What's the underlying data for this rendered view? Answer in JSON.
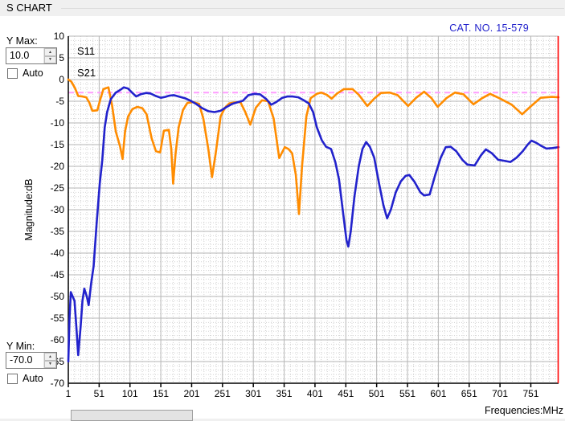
{
  "window": {
    "title": "S CHART"
  },
  "annotation": {
    "cat_no": "CAT. NO. 15-579"
  },
  "controls": {
    "y_max_label": "Y Max:",
    "y_max_value": "10.0",
    "y_min_label": "Y Min:",
    "y_min_value": "-70.0",
    "auto_label": "Auto",
    "auto_max_checked": false,
    "auto_min_checked": false
  },
  "icons": {
    "spin_up": "▲",
    "spin_down": "▼"
  },
  "colors": {
    "s11": "#ff8c00",
    "s21": "#2222cc",
    "reference_line": "#ff9eff",
    "cursor_line": "#ff0000",
    "cat_no_text": "#2222cc",
    "grid_major": "#b5b5b5",
    "grid_minor": "#d2d2d2",
    "axis": "#000000"
  },
  "chart_data": {
    "type": "line",
    "title": "",
    "xlabel": "Frequencies:MHz",
    "ylabel": "Magnitude:dB",
    "xlim": [
      1,
      796
    ],
    "ylim": [
      -70,
      10
    ],
    "x_ticks": [
      1,
      51,
      101,
      151,
      201,
      251,
      301,
      351,
      401,
      451,
      501,
      551,
      601,
      651,
      701,
      751
    ],
    "y_ticks": [
      10,
      5,
      0,
      -5,
      -10,
      -15,
      -20,
      -25,
      -30,
      -35,
      -40,
      -45,
      -50,
      -55,
      -60,
      -65,
      -70
    ],
    "x_minor_step": 10,
    "y_minor_step": 1,
    "grid": true,
    "legend_position": "top-left",
    "reference_line": {
      "y": -3,
      "style": "dashed"
    },
    "cursor_line": {
      "x": 796
    },
    "series": [
      {
        "name": "S11",
        "points": [
          [
            1,
            0
          ],
          [
            6,
            -0.5
          ],
          [
            12,
            -2
          ],
          [
            17,
            -3.8
          ],
          [
            24,
            -3.9
          ],
          [
            30,
            -4.1
          ],
          [
            35,
            -5.3
          ],
          [
            40,
            -7.2
          ],
          [
            48,
            -7.1
          ],
          [
            53,
            -4.5
          ],
          [
            58,
            -2.2
          ],
          [
            66,
            -1.8
          ],
          [
            72,
            -6
          ],
          [
            78,
            -12
          ],
          [
            85,
            -15.5
          ],
          [
            89,
            -18.3
          ],
          [
            93,
            -12
          ],
          [
            98,
            -8.5
          ],
          [
            105,
            -6.8
          ],
          [
            113,
            -6.3
          ],
          [
            121,
            -6.6
          ],
          [
            128,
            -8
          ],
          [
            136,
            -13.5
          ],
          [
            143,
            -16.5
          ],
          [
            150,
            -16.8
          ],
          [
            156,
            -11.8
          ],
          [
            164,
            -11.6
          ],
          [
            168,
            -16
          ],
          [
            171,
            -24
          ],
          [
            175,
            -17
          ],
          [
            180,
            -11
          ],
          [
            187,
            -7
          ],
          [
            194,
            -5.4
          ],
          [
            203,
            -5.2
          ],
          [
            213,
            -5.6
          ],
          [
            220,
            -9
          ],
          [
            228,
            -16
          ],
          [
            234,
            -22.5
          ],
          [
            240,
            -17
          ],
          [
            248,
            -8.5
          ],
          [
            255,
            -6.5
          ],
          [
            262,
            -5.5
          ],
          [
            270,
            -5.3
          ],
          [
            280,
            -5.2
          ],
          [
            288,
            -7.5
          ],
          [
            296,
            -10.4
          ],
          [
            305,
            -6.5
          ],
          [
            315,
            -4.8
          ],
          [
            325,
            -5.0
          ],
          [
            334,
            -9
          ],
          [
            343,
            -18.1
          ],
          [
            352,
            -15.6
          ],
          [
            358,
            -16
          ],
          [
            364,
            -17
          ],
          [
            370,
            -22
          ],
          [
            375,
            -31
          ],
          [
            380,
            -20
          ],
          [
            387,
            -8.5
          ],
          [
            394,
            -4.3
          ],
          [
            404,
            -3.3
          ],
          [
            411,
            -3.0
          ],
          [
            420,
            -3.5
          ],
          [
            428,
            -4.4
          ],
          [
            437,
            -3.2
          ],
          [
            448,
            -2.2
          ],
          [
            462,
            -2.2
          ],
          [
            472,
            -3.5
          ],
          [
            486,
            -6.1
          ],
          [
            497,
            -4.4
          ],
          [
            508,
            -3.1
          ],
          [
            522,
            -3.0
          ],
          [
            535,
            -3.6
          ],
          [
            552,
            -6.1
          ],
          [
            565,
            -4.2
          ],
          [
            578,
            -2.8
          ],
          [
            590,
            -4.3
          ],
          [
            600,
            -6.3
          ],
          [
            614,
            -4.3
          ],
          [
            628,
            -3.0
          ],
          [
            642,
            -3.4
          ],
          [
            658,
            -5.7
          ],
          [
            672,
            -4.3
          ],
          [
            685,
            -3.3
          ],
          [
            700,
            -4.3
          ],
          [
            720,
            -5.8
          ],
          [
            737,
            -8.0
          ],
          [
            750,
            -6.3
          ],
          [
            767,
            -4.2
          ],
          [
            785,
            -4.0
          ],
          [
            796,
            -4.1
          ]
        ]
      },
      {
        "name": "S21",
        "points": [
          [
            1,
            -65
          ],
          [
            3,
            -55
          ],
          [
            5,
            -49
          ],
          [
            8,
            -50
          ],
          [
            11,
            -51
          ],
          [
            14,
            -57
          ],
          [
            17,
            -63.5
          ],
          [
            21,
            -57
          ],
          [
            24,
            -51
          ],
          [
            27,
            -48.2
          ],
          [
            31,
            -50
          ],
          [
            34,
            -52
          ],
          [
            38,
            -47
          ],
          [
            42,
            -43
          ],
          [
            47,
            -33
          ],
          [
            52,
            -24
          ],
          [
            56,
            -18.7
          ],
          [
            60,
            -11
          ],
          [
            64,
            -7.5
          ],
          [
            70,
            -4.5
          ],
          [
            78,
            -3
          ],
          [
            85,
            -2.4
          ],
          [
            91,
            -1.8
          ],
          [
            98,
            -2.1
          ],
          [
            105,
            -3.1
          ],
          [
            111,
            -3.9
          ],
          [
            118,
            -3.4
          ],
          [
            127,
            -3.1
          ],
          [
            134,
            -3.2
          ],
          [
            143,
            -3.8
          ],
          [
            151,
            -4.2
          ],
          [
            158,
            -4.0
          ],
          [
            165,
            -3.7
          ],
          [
            172,
            -3.6
          ],
          [
            180,
            -3.9
          ],
          [
            190,
            -4.3
          ],
          [
            198,
            -4.8
          ],
          [
            208,
            -5.6
          ],
          [
            218,
            -6.6
          ],
          [
            228,
            -7.3
          ],
          [
            238,
            -7.5
          ],
          [
            248,
            -7.2
          ],
          [
            258,
            -6.3
          ],
          [
            267,
            -5.6
          ],
          [
            276,
            -5.2
          ],
          [
            284,
            -4.9
          ],
          [
            293,
            -3.6
          ],
          [
            303,
            -3.3
          ],
          [
            312,
            -3.4
          ],
          [
            322,
            -4.5
          ],
          [
            330,
            -5.8
          ],
          [
            338,
            -5.2
          ],
          [
            348,
            -4.2
          ],
          [
            356,
            -3.9
          ],
          [
            365,
            -3.9
          ],
          [
            374,
            -4.1
          ],
          [
            383,
            -4.8
          ],
          [
            391,
            -5.5
          ],
          [
            398,
            -7.5
          ],
          [
            404,
            -11
          ],
          [
            412,
            -14
          ],
          [
            419,
            -15.5
          ],
          [
            427,
            -16
          ],
          [
            434,
            -19
          ],
          [
            440,
            -23
          ],
          [
            446,
            -30
          ],
          [
            452,
            -37
          ],
          [
            455,
            -38.5
          ],
          [
            459,
            -35
          ],
          [
            465,
            -27
          ],
          [
            472,
            -20
          ],
          [
            478,
            -16
          ],
          [
            484,
            -14.4
          ],
          [
            490,
            -15.5
          ],
          [
            497,
            -18
          ],
          [
            505,
            -24
          ],
          [
            512,
            -29
          ],
          [
            518,
            -32
          ],
          [
            524,
            -30
          ],
          [
            532,
            -26
          ],
          [
            540,
            -23.5
          ],
          [
            548,
            -22.2
          ],
          [
            554,
            -22
          ],
          [
            562,
            -23.5
          ],
          [
            572,
            -26
          ],
          [
            578,
            -26.7
          ],
          [
            587,
            -26.5
          ],
          [
            596,
            -22
          ],
          [
            605,
            -18
          ],
          [
            613,
            -15.6
          ],
          [
            621,
            -15.5
          ],
          [
            630,
            -16.5
          ],
          [
            640,
            -18.5
          ],
          [
            648,
            -19.6
          ],
          [
            660,
            -19.8
          ],
          [
            670,
            -17.5
          ],
          [
            678,
            -16.1
          ],
          [
            688,
            -17
          ],
          [
            698,
            -18.5
          ],
          [
            707,
            -18.7
          ],
          [
            718,
            -19
          ],
          [
            728,
            -18
          ],
          [
            738,
            -16.5
          ],
          [
            746,
            -15
          ],
          [
            752,
            -14.1
          ],
          [
            760,
            -14.6
          ],
          [
            768,
            -15.3
          ],
          [
            776,
            -15.9
          ],
          [
            786,
            -15.8
          ],
          [
            796,
            -15.6
          ]
        ]
      }
    ]
  },
  "scrollbar": {
    "orientation": "horizontal"
  }
}
